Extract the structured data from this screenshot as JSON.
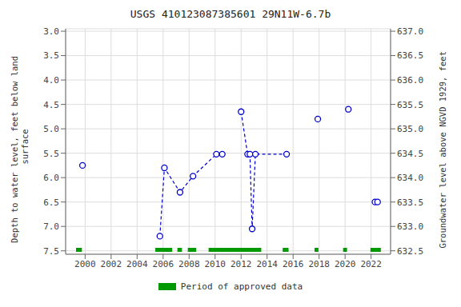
{
  "chart_data": {
    "type": "scatter",
    "title": "USGS 410123087385601 29N11W-6.7b",
    "y_label": "Depth to water level, feet below land\n surface",
    "y2_label": "Groundwater level above NGVD 1929, feet",
    "xlim": [
      1998.5,
      2023.5
    ],
    "xticks": [
      2000,
      2002,
      2004,
      2006,
      2008,
      2010,
      2012,
      2014,
      2016,
      2018,
      2020,
      2022
    ],
    "ylim": [
      7.57,
      2.95
    ],
    "yticks": [
      {
        "value": 3.0,
        "label": "3.0"
      },
      {
        "value": 3.5,
        "label": "3.5"
      },
      {
        "value": 4.0,
        "label": "4.0"
      },
      {
        "value": 4.5,
        "label": "4.5"
      },
      {
        "value": 5.0,
        "label": "5.0"
      },
      {
        "value": 5.5,
        "label": "5.5"
      },
      {
        "value": 6.0,
        "label": "6.0"
      },
      {
        "value": 6.5,
        "label": "6.5"
      },
      {
        "value": 7.0,
        "label": "7.0"
      },
      {
        "value": 7.5,
        "label": "7.5"
      }
    ],
    "y2lim": [
      632.43,
      637.05
    ],
    "y2ticks": [
      {
        "value": 637.0,
        "label": "637.0"
      },
      {
        "value": 636.5,
        "label": "636.5"
      },
      {
        "value": 636.0,
        "label": "636.0"
      },
      {
        "value": 635.5,
        "label": "635.5"
      },
      {
        "value": 635.0,
        "label": "635.0"
      },
      {
        "value": 634.5,
        "label": "634.5"
      },
      {
        "value": 634.0,
        "label": "634.0"
      },
      {
        "value": 633.5,
        "label": "633.5"
      },
      {
        "value": 633.0,
        "label": "633.0"
      },
      {
        "value": 632.5,
        "label": "632.5"
      }
    ],
    "grid": true,
    "legend": "bottom",
    "series": [
      {
        "type": "line",
        "line_style": "dashed",
        "color": "#0000cc",
        "x": [
          2005.75,
          2006.1,
          2007.3,
          2008.3,
          2010.1,
          2010.55
        ],
        "values": [
          7.2,
          5.8,
          6.3,
          5.97,
          5.52,
          5.52
        ]
      },
      {
        "type": "line",
        "line_style": "dashed",
        "color": "#0000cc",
        "x": [
          2012.0,
          2012.5,
          2012.68,
          2012.85,
          2013.1,
          2015.5
        ],
        "values": [
          4.65,
          5.52,
          5.52,
          7.05,
          5.52,
          5.52
        ]
      },
      {
        "type": "scatter",
        "marker": "circle",
        "color": "#0000cc",
        "x": [
          1999.8,
          2005.75,
          2006.1,
          2007.3,
          2008.3,
          2010.1,
          2010.55,
          2012.0,
          2012.5,
          2012.68,
          2012.85,
          2013.1,
          2015.5,
          2017.9,
          2020.25,
          2022.3,
          2022.5
        ],
        "values": [
          5.75,
          7.2,
          5.8,
          6.3,
          5.97,
          5.52,
          5.52,
          4.65,
          5.52,
          5.52,
          7.05,
          5.52,
          5.52,
          4.8,
          4.6,
          6.5,
          6.5
        ]
      },
      {
        "type": "span",
        "name": "Period of approved data",
        "color": "#009900",
        "periods": [
          [
            1999.3,
            1999.75
          ],
          [
            2005.4,
            2006.7
          ],
          [
            2007.1,
            2007.45
          ],
          [
            2007.9,
            2008.55
          ],
          [
            2009.5,
            2013.55
          ],
          [
            2015.2,
            2015.65
          ],
          [
            2017.65,
            2017.95
          ],
          [
            2019.85,
            2020.15
          ],
          [
            2021.95,
            2022.75
          ]
        ]
      }
    ]
  }
}
